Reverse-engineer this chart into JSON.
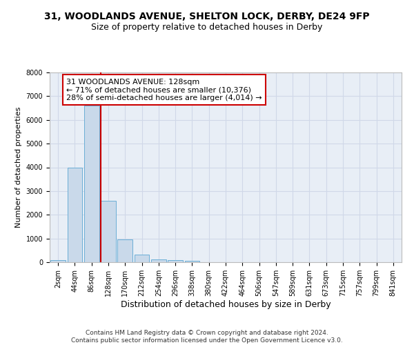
{
  "title1": "31, WOODLANDS AVENUE, SHELTON LOCK, DERBY, DE24 9FP",
  "title2": "Size of property relative to detached houses in Derby",
  "xlabel": "Distribution of detached houses by size in Derby",
  "ylabel": "Number of detached properties",
  "bar_labels": [
    "2sqm",
    "44sqm",
    "86sqm",
    "128sqm",
    "170sqm",
    "212sqm",
    "254sqm",
    "296sqm",
    "338sqm",
    "380sqm",
    "422sqm",
    "464sqm",
    "506sqm",
    "547sqm",
    "589sqm",
    "631sqm",
    "673sqm",
    "715sqm",
    "757sqm",
    "799sqm",
    "841sqm"
  ],
  "bar_values": [
    75,
    4000,
    6600,
    2600,
    950,
    320,
    130,
    75,
    65,
    0,
    0,
    0,
    0,
    0,
    0,
    0,
    0,
    0,
    0,
    0,
    0
  ],
  "bar_color": "#c9d9ea",
  "bar_edgecolor": "#6aaed6",
  "vline_x_index": 3,
  "vline_color": "#cc0000",
  "annotation_line1": "31 WOODLANDS AVENUE: 128sqm",
  "annotation_line2": "← 71% of detached houses are smaller (10,376)",
  "annotation_line3": "28% of semi-detached houses are larger (4,014) →",
  "annotation_box_color": "#cc0000",
  "ylim": [
    0,
    8000
  ],
  "yticks": [
    0,
    1000,
    2000,
    3000,
    4000,
    5000,
    6000,
    7000,
    8000
  ],
  "grid_color": "#d0d8e8",
  "background_color": "#e8eef6",
  "footer_text": "Contains HM Land Registry data © Crown copyright and database right 2024.\nContains public sector information licensed under the Open Government Licence v3.0.",
  "title1_fontsize": 10,
  "title2_fontsize": 9,
  "xlabel_fontsize": 9,
  "ylabel_fontsize": 8,
  "tick_fontsize": 7,
  "annotation_fontsize": 8,
  "footer_fontsize": 6.5
}
